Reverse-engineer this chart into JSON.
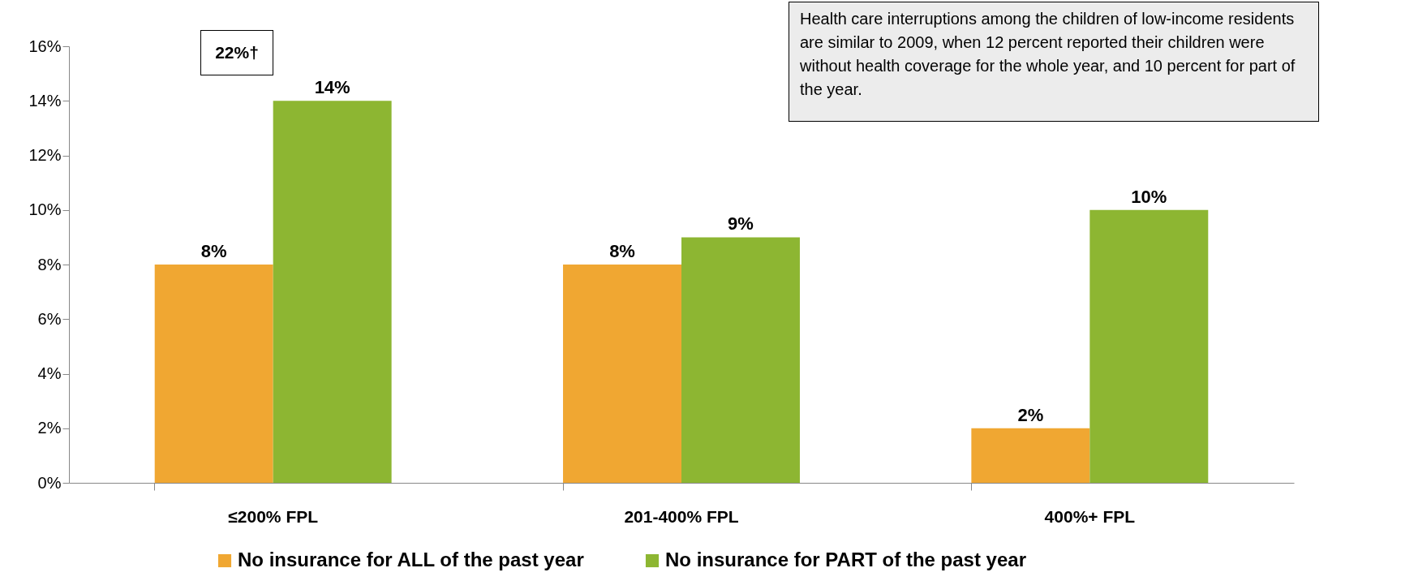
{
  "chart_data": {
    "type": "bar",
    "categories": [
      "≤200% FPL",
      "201-400% FPL",
      "400%+ FPL"
    ],
    "series": [
      {
        "name": "No insurance for ALL of the past year",
        "color": "#f0a732",
        "values": [
          8,
          8,
          2
        ],
        "value_labels": [
          "8%",
          "8%",
          "2%"
        ]
      },
      {
        "name": "No insurance for PART of the past year",
        "color": "#8db632",
        "values": [
          14,
          9,
          10
        ],
        "value_labels": [
          "14%",
          "9%",
          "10%"
        ]
      }
    ],
    "ylim": [
      0,
      16
    ],
    "yticks": [
      {
        "value": 0,
        "label": "0%"
      },
      {
        "value": 2,
        "label": "2%"
      },
      {
        "value": 4,
        "label": "4%"
      },
      {
        "value": 6,
        "label": "6%"
      },
      {
        "value": 8,
        "label": "8%"
      },
      {
        "value": 10,
        "label": "10%"
      },
      {
        "value": 12,
        "label": "12%"
      },
      {
        "value": 14,
        "label": "14%"
      },
      {
        "value": 16,
        "label": "16%"
      }
    ],
    "annotations": [
      "22%†",
      "Health care interruptions  among the children of low-income residents are similar to 2009, when 12 percent reported their children were without health coverage for the whole year, and 10 percent for part of the year."
    ],
    "legend": "bottom",
    "grid": false
  }
}
